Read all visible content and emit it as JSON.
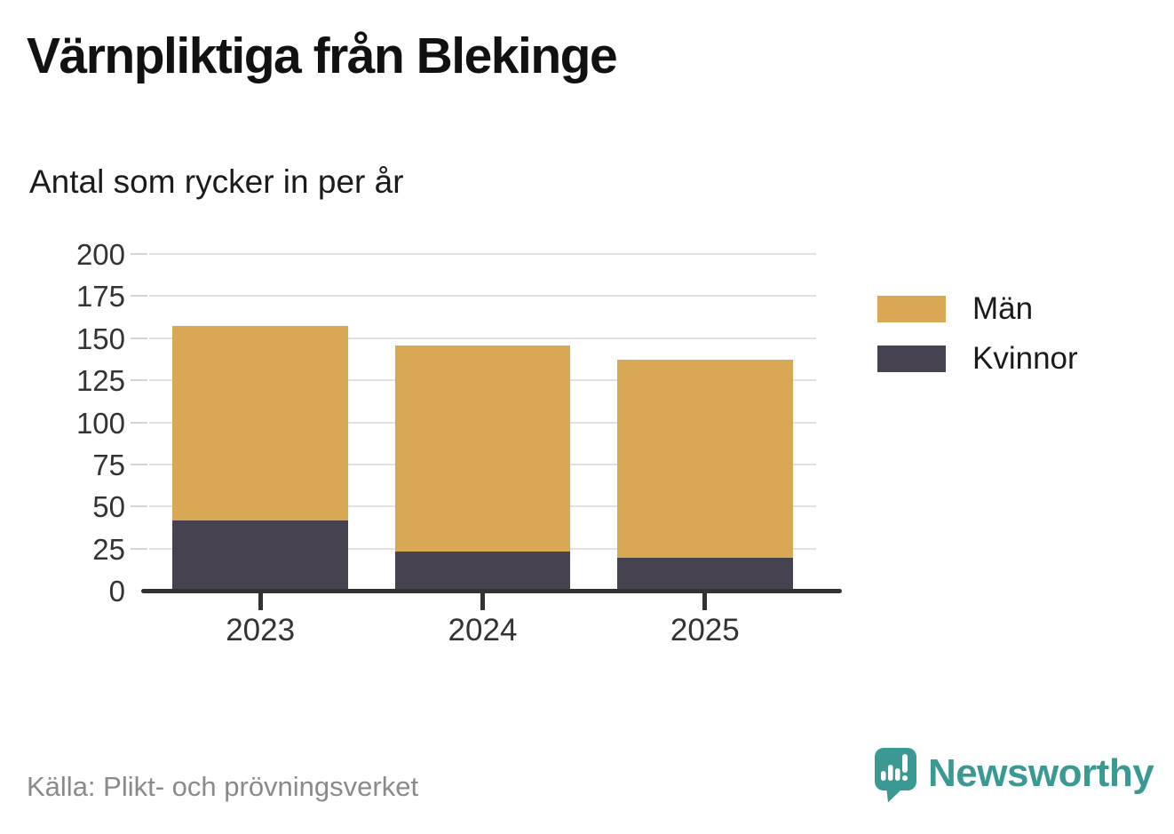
{
  "title": "Värnpliktiga från Blekinge",
  "subtitle": "Antal som rycker in per år",
  "footer": {
    "source": "Källa: Plikt- och prövningsverket"
  },
  "brand": {
    "name": "Newsworthy",
    "color": "#3a9a93",
    "logo_icon": "speech-bubble-bar-chart-icon"
  },
  "chart_data": {
    "type": "bar",
    "stacked": true,
    "title": "Värnpliktiga från Blekinge",
    "subtitle": "Antal som rycker in per år",
    "categories": [
      "2023",
      "2024",
      "2025"
    ],
    "series": [
      {
        "name": "Män",
        "color": "#d9a855",
        "values": [
          116,
          122,
          118
        ]
      },
      {
        "name": "Kvinnor",
        "color": "#46424f",
        "values": [
          42,
          24,
          20
        ]
      }
    ],
    "totals": [
      158,
      146,
      138
    ],
    "ylim": [
      0,
      200
    ],
    "yticks": [
      0,
      25,
      50,
      75,
      100,
      125,
      150,
      175,
      200
    ],
    "xlabel": "",
    "ylabel": "",
    "grid": "horizontal",
    "legend_position": "right",
    "gridline_color": "#e1e1e1",
    "axis_color": "#323232",
    "tick_label_color": "#333333"
  }
}
